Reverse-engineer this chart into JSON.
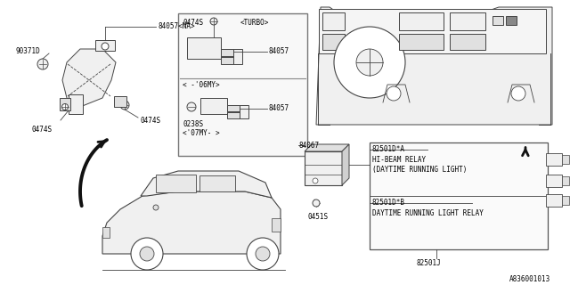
{
  "bg_color": "#ffffff",
  "line_color": "#444444",
  "text_color": "#000000",
  "diagram_id": "A836001013",
  "labels": {
    "part_90371D": "90371D",
    "part_84057NA": "84057<NA>",
    "part_0474S_1": "0474S",
    "part_0474S_2": "0474S",
    "part_0474S_3": "0474S",
    "inset_turbo": "<TURBO>",
    "inset_06my": "< -'06MY>",
    "inset_07my": "<'07MY- >",
    "inset_84057_1": "84057",
    "inset_84057_2": "84057",
    "inset_0474S": "0474S",
    "inset_0238S": "0238S",
    "relay_84067": "84067",
    "relay_0451S": "0451S",
    "relay_label1": "82501D*A",
    "relay_desc1a": "HI-BEAM RELAY",
    "relay_desc1b": "(DAYTIME RUNNING LIGHT)",
    "relay_label2": "82501D*B",
    "relay_desc2": "DAYTIME RUNNING LIGHT RELAY",
    "relay_box": "82501J"
  }
}
